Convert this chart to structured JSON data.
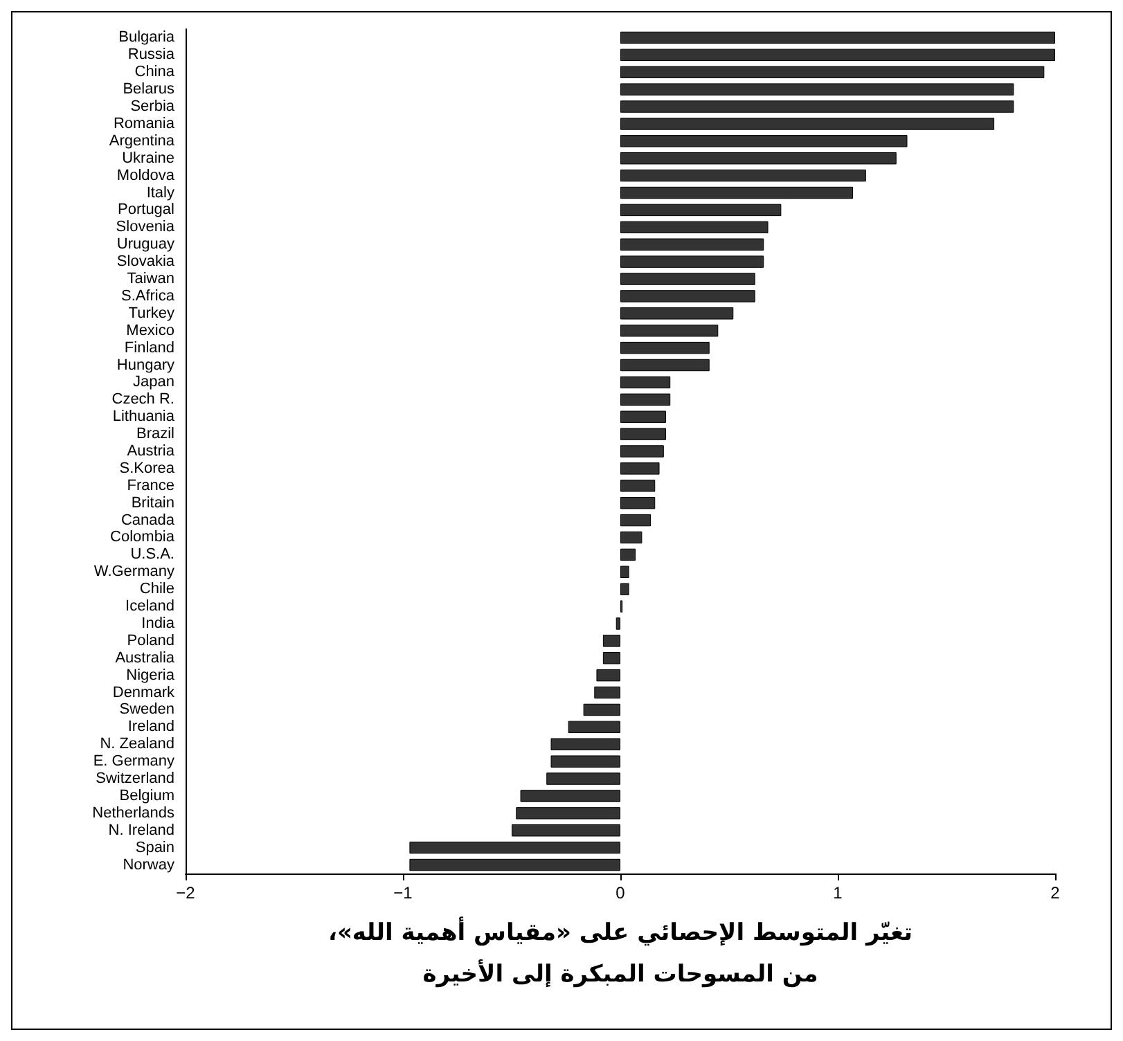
{
  "chart_data": {
    "type": "bar",
    "orientation": "horizontal",
    "xlabel": "تغيّر المتوسط الإحصائي على «مقياس أهمية الله»،\nمن المسوحات المبكرة إلى الأخيرة",
    "categories": [
      "Bulgaria",
      "Russia",
      "China",
      "Belarus",
      "Serbia",
      "Romania",
      "Argentina",
      "Ukraine",
      "Moldova",
      "Italy",
      "Portugal",
      "Slovenia",
      "Uruguay",
      "Slovakia",
      "Taiwan",
      "S.Africa",
      "Turkey",
      "Mexico",
      "Finland",
      "Hungary",
      "Japan",
      "Czech R.",
      "Lithuania",
      "Brazil",
      "Austria",
      "S.Korea",
      "France",
      "Britain",
      "Canada",
      "Colombia",
      "U.S.A.",
      "W.Germany",
      "Chile",
      "Iceland",
      "India",
      "Poland",
      "Australia",
      "Nigeria",
      "Denmark",
      "Sweden",
      "Ireland",
      "N. Zealand",
      "E. Germany",
      "Switzerland",
      "Belgium",
      "Netherlands",
      "N. Ireland",
      "Spain",
      "Norway"
    ],
    "values": [
      2.0,
      2.0,
      1.95,
      1.81,
      1.81,
      1.72,
      1.32,
      1.27,
      1.13,
      1.07,
      0.74,
      0.68,
      0.66,
      0.66,
      0.62,
      0.62,
      0.52,
      0.45,
      0.41,
      0.41,
      0.23,
      0.23,
      0.21,
      0.21,
      0.2,
      0.18,
      0.16,
      0.16,
      0.14,
      0.1,
      0.07,
      0.04,
      0.04,
      0.01,
      -0.02,
      -0.08,
      -0.08,
      -0.11,
      -0.12,
      -0.17,
      -0.24,
      -0.32,
      -0.32,
      -0.34,
      -0.46,
      -0.48,
      -0.5,
      -0.97,
      -0.97
    ],
    "color": "#333333",
    "xlim": [
      -2,
      2
    ],
    "xticks": [
      {
        "value": -2,
        "label": "−2"
      },
      {
        "value": -1,
        "label": "−1"
      },
      0,
      1,
      2
    ],
    "grid": false
  }
}
